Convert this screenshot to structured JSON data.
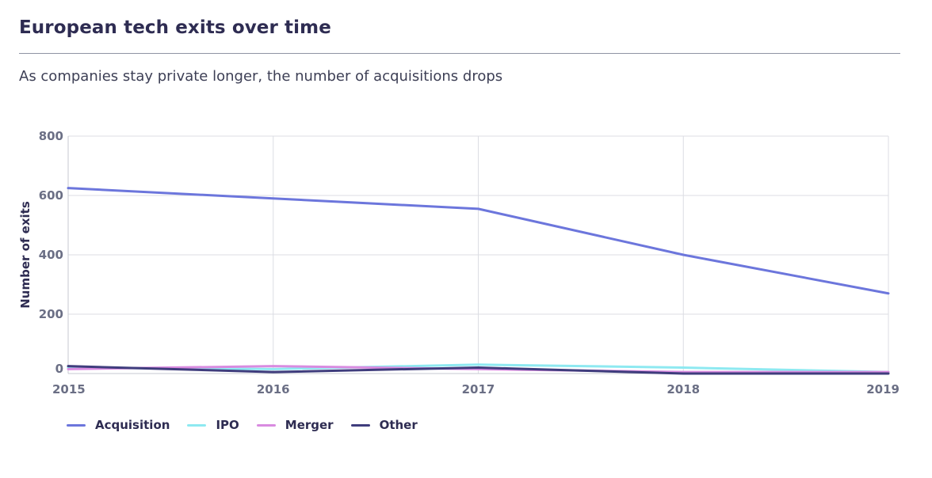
{
  "title": "European tech exits over time",
  "subtitle": "As companies stay private longer, the number of acquisitions drops",
  "chart_data": {
    "type": "line",
    "title": "European tech exits over time",
    "subtitle": "As companies stay private longer, the number of acquisitions drops",
    "xlabel": "",
    "ylabel": "Number of exits",
    "x": [
      "2015",
      "2016",
      "2017",
      "2018",
      "2019"
    ],
    "ylim": [
      0,
      800
    ],
    "yticks": [
      "0",
      "200",
      "400",
      "600",
      "800"
    ],
    "grid": true,
    "legend_position": "bottom-left",
    "series": [
      {
        "name": "Acquisition",
        "color": "#6c76dc",
        "values": [
          625,
          590,
          555,
          400,
          270
        ]
      },
      {
        "name": "IPO",
        "color": "#8ee9f1",
        "values": [
          20,
          15,
          30,
          20,
          5
        ]
      },
      {
        "name": "Merger",
        "color": "#d98be0",
        "values": [
          15,
          25,
          15,
          5,
          5
        ]
      },
      {
        "name": "Other",
        "color": "#3f3d7d",
        "values": [
          25,
          5,
          20,
          0,
          0
        ]
      }
    ]
  }
}
